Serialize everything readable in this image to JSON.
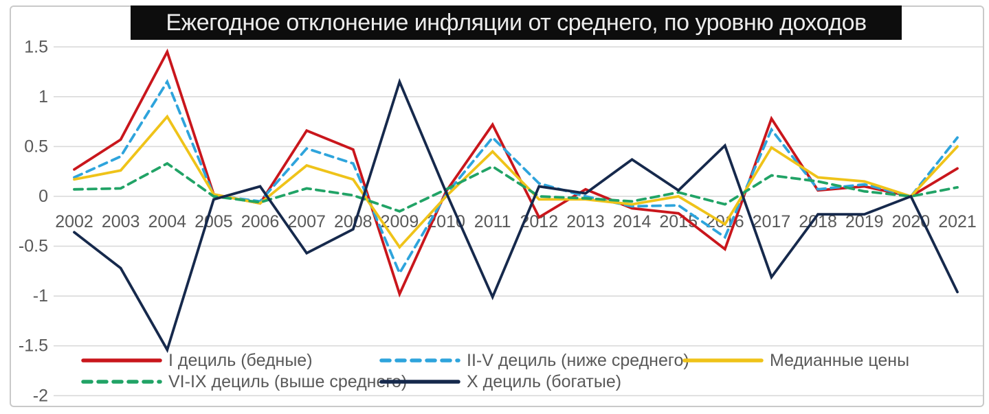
{
  "title": "Ежегодное отклонение инфляции от среднего, по уровню доходов",
  "chart_data": {
    "type": "line",
    "title": "Ежегодное отклонение инфляции от среднего, по уровню доходов",
    "xlabel": "",
    "ylabel": "",
    "categories": [
      "2002",
      "2003",
      "2004",
      "2005",
      "2006",
      "2007",
      "2008",
      "2009",
      "2010",
      "2011",
      "2012",
      "2013",
      "2014",
      "2015",
      "2016",
      "2017",
      "2018",
      "2019",
      "2020",
      "2021"
    ],
    "y_ticks": [
      "1.5",
      "1",
      "0.5",
      "0",
      "-0.5",
      "-1",
      "-1.5",
      "-2"
    ],
    "ylim": [
      -2,
      1.5
    ],
    "grid": "horizontal",
    "legend_position": "bottom",
    "axis_label_color": "#595959",
    "gridline_color": "#d9d9d9",
    "title_bg_color": "#0d0d0d",
    "title_text_color": "#ececec",
    "series": [
      {
        "name": "I дециль (бедные)",
        "color": "#c9161c",
        "style": "solid",
        "values": [
          0.27,
          0.57,
          1.45,
          0.02,
          -0.07,
          0.66,
          0.47,
          -0.98,
          0.05,
          0.72,
          -0.21,
          0.07,
          -0.12,
          -0.17,
          -0.53,
          0.78,
          0.06,
          0.1,
          0.0,
          0.28
        ]
      },
      {
        "name": "II-V дециль (ниже среднего)",
        "color": "#2ea4dc",
        "style": "dashed",
        "values": [
          0.19,
          0.4,
          1.15,
          0.01,
          -0.05,
          0.48,
          0.33,
          -0.77,
          0.02,
          0.59,
          0.13,
          0.0,
          -0.1,
          -0.09,
          -0.41,
          0.67,
          0.07,
          0.12,
          0.0,
          0.59
        ]
      },
      {
        "name": "Медианные цены",
        "color": "#efc319",
        "style": "solid",
        "values": [
          0.17,
          0.26,
          0.8,
          0.02,
          -0.07,
          0.31,
          0.17,
          -0.51,
          0.0,
          0.45,
          -0.03,
          -0.03,
          -0.08,
          0.0,
          -0.28,
          0.49,
          0.19,
          0.15,
          0.0,
          0.5
        ]
      },
      {
        "name": "VI-IX дециль (выше среднего)",
        "color": "#21a366",
        "style": "dashed",
        "values": [
          0.07,
          0.08,
          0.33,
          0.0,
          -0.06,
          0.08,
          0.01,
          -0.15,
          0.07,
          0.3,
          0.0,
          -0.02,
          -0.05,
          0.04,
          -0.08,
          0.21,
          0.15,
          0.05,
          0.0,
          0.09
        ]
      },
      {
        "name": "X дециль (богатые)",
        "color": "#16294c",
        "style": "solid",
        "values": [
          -0.36,
          -0.72,
          -1.54,
          -0.03,
          0.1,
          -0.57,
          -0.33,
          1.15,
          0.04,
          -1.01,
          0.1,
          0.03,
          0.37,
          0.06,
          0.51,
          -0.81,
          -0.18,
          -0.18,
          0.0,
          -0.96
        ]
      }
    ]
  },
  "legend": {
    "rows": [
      [
        0,
        1,
        2
      ],
      [
        3,
        4
      ]
    ]
  }
}
